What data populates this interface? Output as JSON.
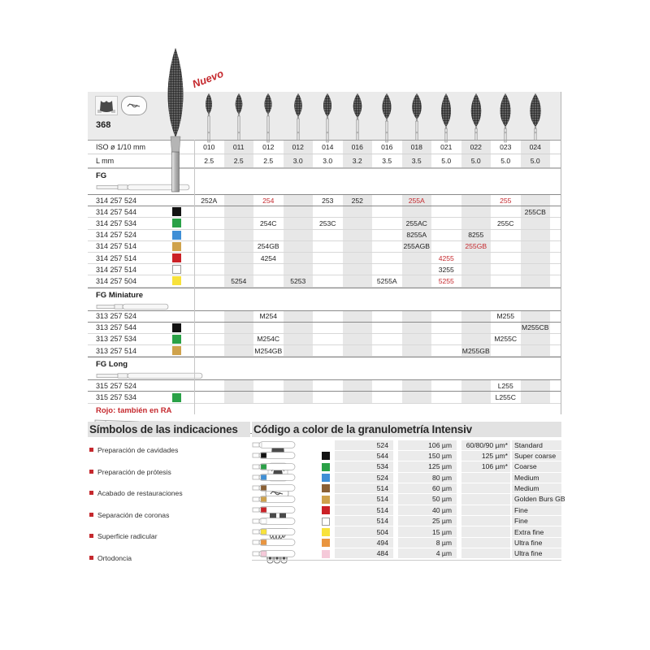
{
  "colors": {
    "accent_red": "#c5292e",
    "band_gray": "#ebebeb",
    "column_shade": "#e7e7e7",
    "chip_colors": {
      "black": "#121212",
      "green": "#2aa147",
      "blue": "#3f8fd6",
      "gold": "#cfa24c",
      "brown": "#8a6035",
      "red": "#cb2127",
      "white": "#ffffff",
      "yellow": "#f8e23b",
      "orange": "#e9953f",
      "pink": "#f5c9d9"
    }
  },
  "header": {
    "figure_number": "368",
    "new_badge": "Nuevo",
    "iso_label": "ISO ø 1/10 mm",
    "length_label": "L mm",
    "iso_values": [
      "010",
      "011",
      "012",
      "012",
      "014",
      "016",
      "016",
      "018",
      "021",
      "022",
      "023",
      "024"
    ],
    "length_values": [
      "2.5",
      "2.5",
      "2.5",
      "3.0",
      "3.0",
      "3.2",
      "3.5",
      "3.5",
      "5.0",
      "5.0",
      "5.0",
      "5.0"
    ]
  },
  "sections": [
    {
      "label": "FG",
      "rows": [
        {
          "code": "314 257 524",
          "chip": null,
          "divider": true,
          "cells": [
            {
              "col": 1,
              "text": "252A"
            },
            {
              "col": 3,
              "text": "254",
              "red": true
            },
            {
              "col": 5,
              "text": "253"
            },
            {
              "col": 6,
              "text": "252"
            },
            {
              "col": 8,
              "text": "255A",
              "red": true
            },
            {
              "col": 11,
              "text": "255",
              "red": true
            }
          ]
        },
        {
          "code": "314 257 544",
          "chip": "black",
          "cells": [
            {
              "col": 12,
              "text": "255CB"
            }
          ]
        },
        {
          "code": "314 257 534",
          "chip": "green",
          "cells": [
            {
              "col": 3,
              "text": "254C"
            },
            {
              "col": 5,
              "text": "253C"
            },
            {
              "col": 8,
              "text": "255AC"
            },
            {
              "col": 11,
              "text": "255C"
            }
          ]
        },
        {
          "code": "314 257 524",
          "chip": "blue",
          "cells": [
            {
              "col": 8,
              "text": "8255A"
            },
            {
              "col": 10,
              "text": "8255"
            }
          ]
        },
        {
          "code": "314 257 514",
          "chip": "gold",
          "cells": [
            {
              "col": 3,
              "text": "254GB"
            },
            {
              "col": 8,
              "text": "255AGB"
            },
            {
              "col": 10,
              "text": "255GB",
              "red": true
            }
          ]
        },
        {
          "code": "314 257 514",
          "chip": "red",
          "cells": [
            {
              "col": 3,
              "text": "4254"
            },
            {
              "col": 9,
              "text": "4255",
              "red": true
            }
          ]
        },
        {
          "code": "314 257 514",
          "chip": "white",
          "cells": [
            {
              "col": 9,
              "text": "3255"
            }
          ]
        },
        {
          "code": "314 257 504",
          "chip": "yellow",
          "cells": [
            {
              "col": 2,
              "text": "5254"
            },
            {
              "col": 4,
              "text": "5253"
            },
            {
              "col": 7,
              "text": "5255A"
            },
            {
              "col": 9,
              "text": "5255",
              "red": true
            }
          ]
        }
      ]
    },
    {
      "label": "FG Miniature",
      "rows": [
        {
          "code": "313 257 524",
          "chip": null,
          "divider": true,
          "cells": [
            {
              "col": 3,
              "text": "M254"
            },
            {
              "col": 11,
              "text": "M255"
            }
          ]
        },
        {
          "code": "313 257 544",
          "chip": "black",
          "cells": [
            {
              "col": 12,
              "text": "M255CB"
            }
          ]
        },
        {
          "code": "313 257 534",
          "chip": "green",
          "cells": [
            {
              "col": 3,
              "text": "M254C"
            },
            {
              "col": 11,
              "text": "M255C"
            }
          ]
        },
        {
          "code": "313 257 514",
          "chip": "gold",
          "cells": [
            {
              "col": 3,
              "text": "M254GB"
            },
            {
              "col": 10,
              "text": "M255GB"
            }
          ]
        }
      ]
    },
    {
      "label": "FG Long",
      "rows": [
        {
          "code": "315 257 524",
          "chip": null,
          "divider": true,
          "cells": [
            {
              "col": 11,
              "text": "L255"
            }
          ]
        },
        {
          "code": "315 257 534",
          "chip": "green",
          "cells": [
            {
              "col": 11,
              "text": "L255C"
            }
          ]
        }
      ]
    }
  ],
  "note": {
    "text": "Rojo: también en RA"
  },
  "symbols": {
    "title": "Símbolos de las indicaciones",
    "items": [
      {
        "label": "Preparación de cavidades",
        "icon": "cavity-preparation-icon"
      },
      {
        "label": "Preparación de prótesis",
        "icon": "prosthesis-preparation-icon"
      },
      {
        "label": "Acabado de restauraciones",
        "icon": "restoration-finishing-icon"
      },
      {
        "label": "Separación de coronas",
        "icon": "crown-separation-icon"
      },
      {
        "label": "Superficie radicular",
        "icon": "root-surface-icon"
      },
      {
        "label": "Ortodoncia",
        "icon": "orthodontics-icon"
      }
    ]
  },
  "legend": {
    "title": "Código a color de la granulometría Intensiv",
    "rows": [
      {
        "chip": null,
        "code": "524",
        "grit": "106 µm",
        "extra": "60/80/90 µm*",
        "name": "Standard"
      },
      {
        "chip": "black",
        "code": "544",
        "grit": "150 µm",
        "extra": "125 µm*",
        "name": "Super coarse"
      },
      {
        "chip": "green",
        "code": "534",
        "grit": "125 µm",
        "extra": "106 µm*",
        "name": "Coarse"
      },
      {
        "chip": "blue",
        "code": "524",
        "grit": "80 µm",
        "extra": "",
        "name": "Medium"
      },
      {
        "chip": "brown",
        "code": "514",
        "grit": "60 µm",
        "extra": "",
        "name": "Medium"
      },
      {
        "chip": "gold",
        "code": "514",
        "grit": "50 µm",
        "extra": "",
        "name": "Golden Burs GB"
      },
      {
        "chip": "red",
        "code": "514",
        "grit": "40 µm",
        "extra": "",
        "name": "Fine"
      },
      {
        "chip": "white",
        "code": "514",
        "grit": "25 µm",
        "extra": "",
        "name": "Fine"
      },
      {
        "chip": "yellow",
        "code": "504",
        "grit": "15 µm",
        "extra": "",
        "name": "Extra fine"
      },
      {
        "chip": "orange",
        "code": "494",
        "grit": "8 µm",
        "extra": "",
        "name": "Ultra fine"
      },
      {
        "chip": "pink",
        "code": "484",
        "grit": "4 µm",
        "extra": "",
        "name": "Ultra fine"
      }
    ]
  }
}
